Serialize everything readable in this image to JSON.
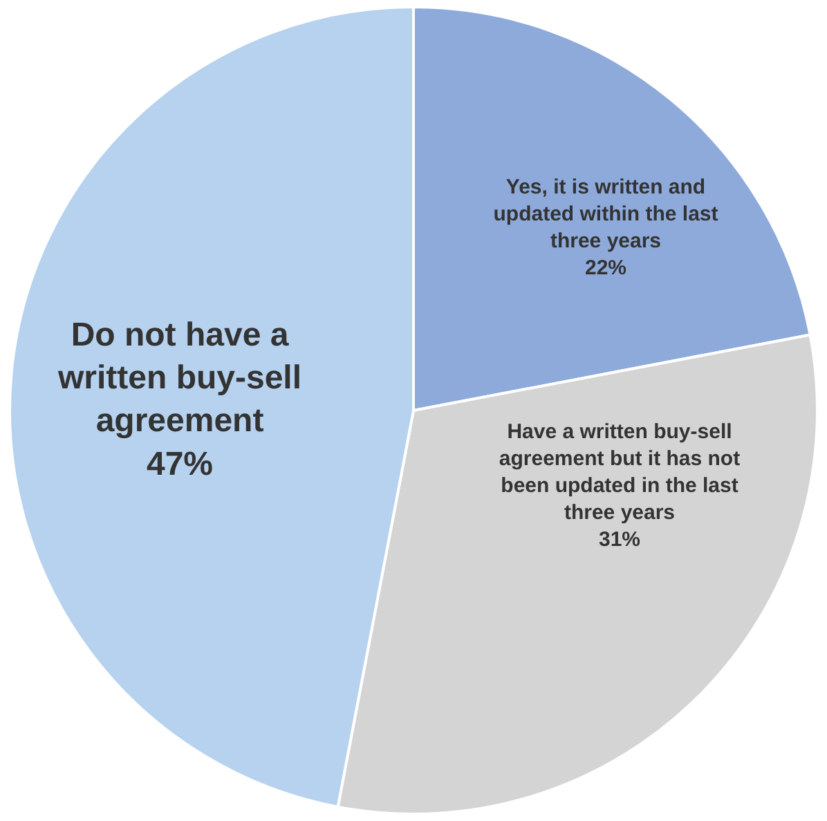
{
  "chart_data": {
    "type": "pie",
    "categories": [
      "Yes, it is written and updated within the last three years",
      "Have a written buy-sell agreement but it has not been updated in the last three years",
      "Do not have a written buy-sell agreement"
    ],
    "values": [
      22,
      31,
      47
    ],
    "colors": [
      "#8eaadb",
      "#d4d4d4",
      "#b6d2ef"
    ],
    "value_labels": [
      "22%",
      "31%",
      "47%"
    ],
    "legend": false
  }
}
